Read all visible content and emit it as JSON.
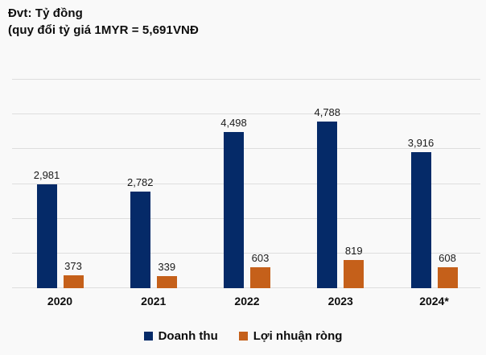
{
  "title": {
    "line1": "Đvt: Tỷ đồng",
    "line2": "(quy đổi tỷ giá 1MYR = 5,691VNĐ"
  },
  "chart_data": {
    "type": "bar",
    "categories": [
      "2020",
      "2021",
      "2022",
      "2023",
      "2024*"
    ],
    "series": [
      {
        "name": "Doanh thu",
        "color": "#052a68",
        "values": [
          2981,
          2782,
          4498,
          4788,
          3916
        ]
      },
      {
        "name": "Lợi nhuận ròng",
        "color": "#c5601a",
        "values": [
          373,
          339,
          603,
          819,
          608
        ]
      }
    ],
    "ylim": [
      0,
      6000
    ],
    "grid_interval": 1000,
    "grid": "horizontal",
    "y_axis_labels_visible": false,
    "value_labels": "above-bars",
    "legend_position": "bottom",
    "xlabel": "",
    "ylabel": ""
  },
  "colors": {
    "background": "#f9f9f9",
    "gridline": "#dedede",
    "label_text": "#1a1a1a",
    "bold_text": "#0d0d0d"
  }
}
